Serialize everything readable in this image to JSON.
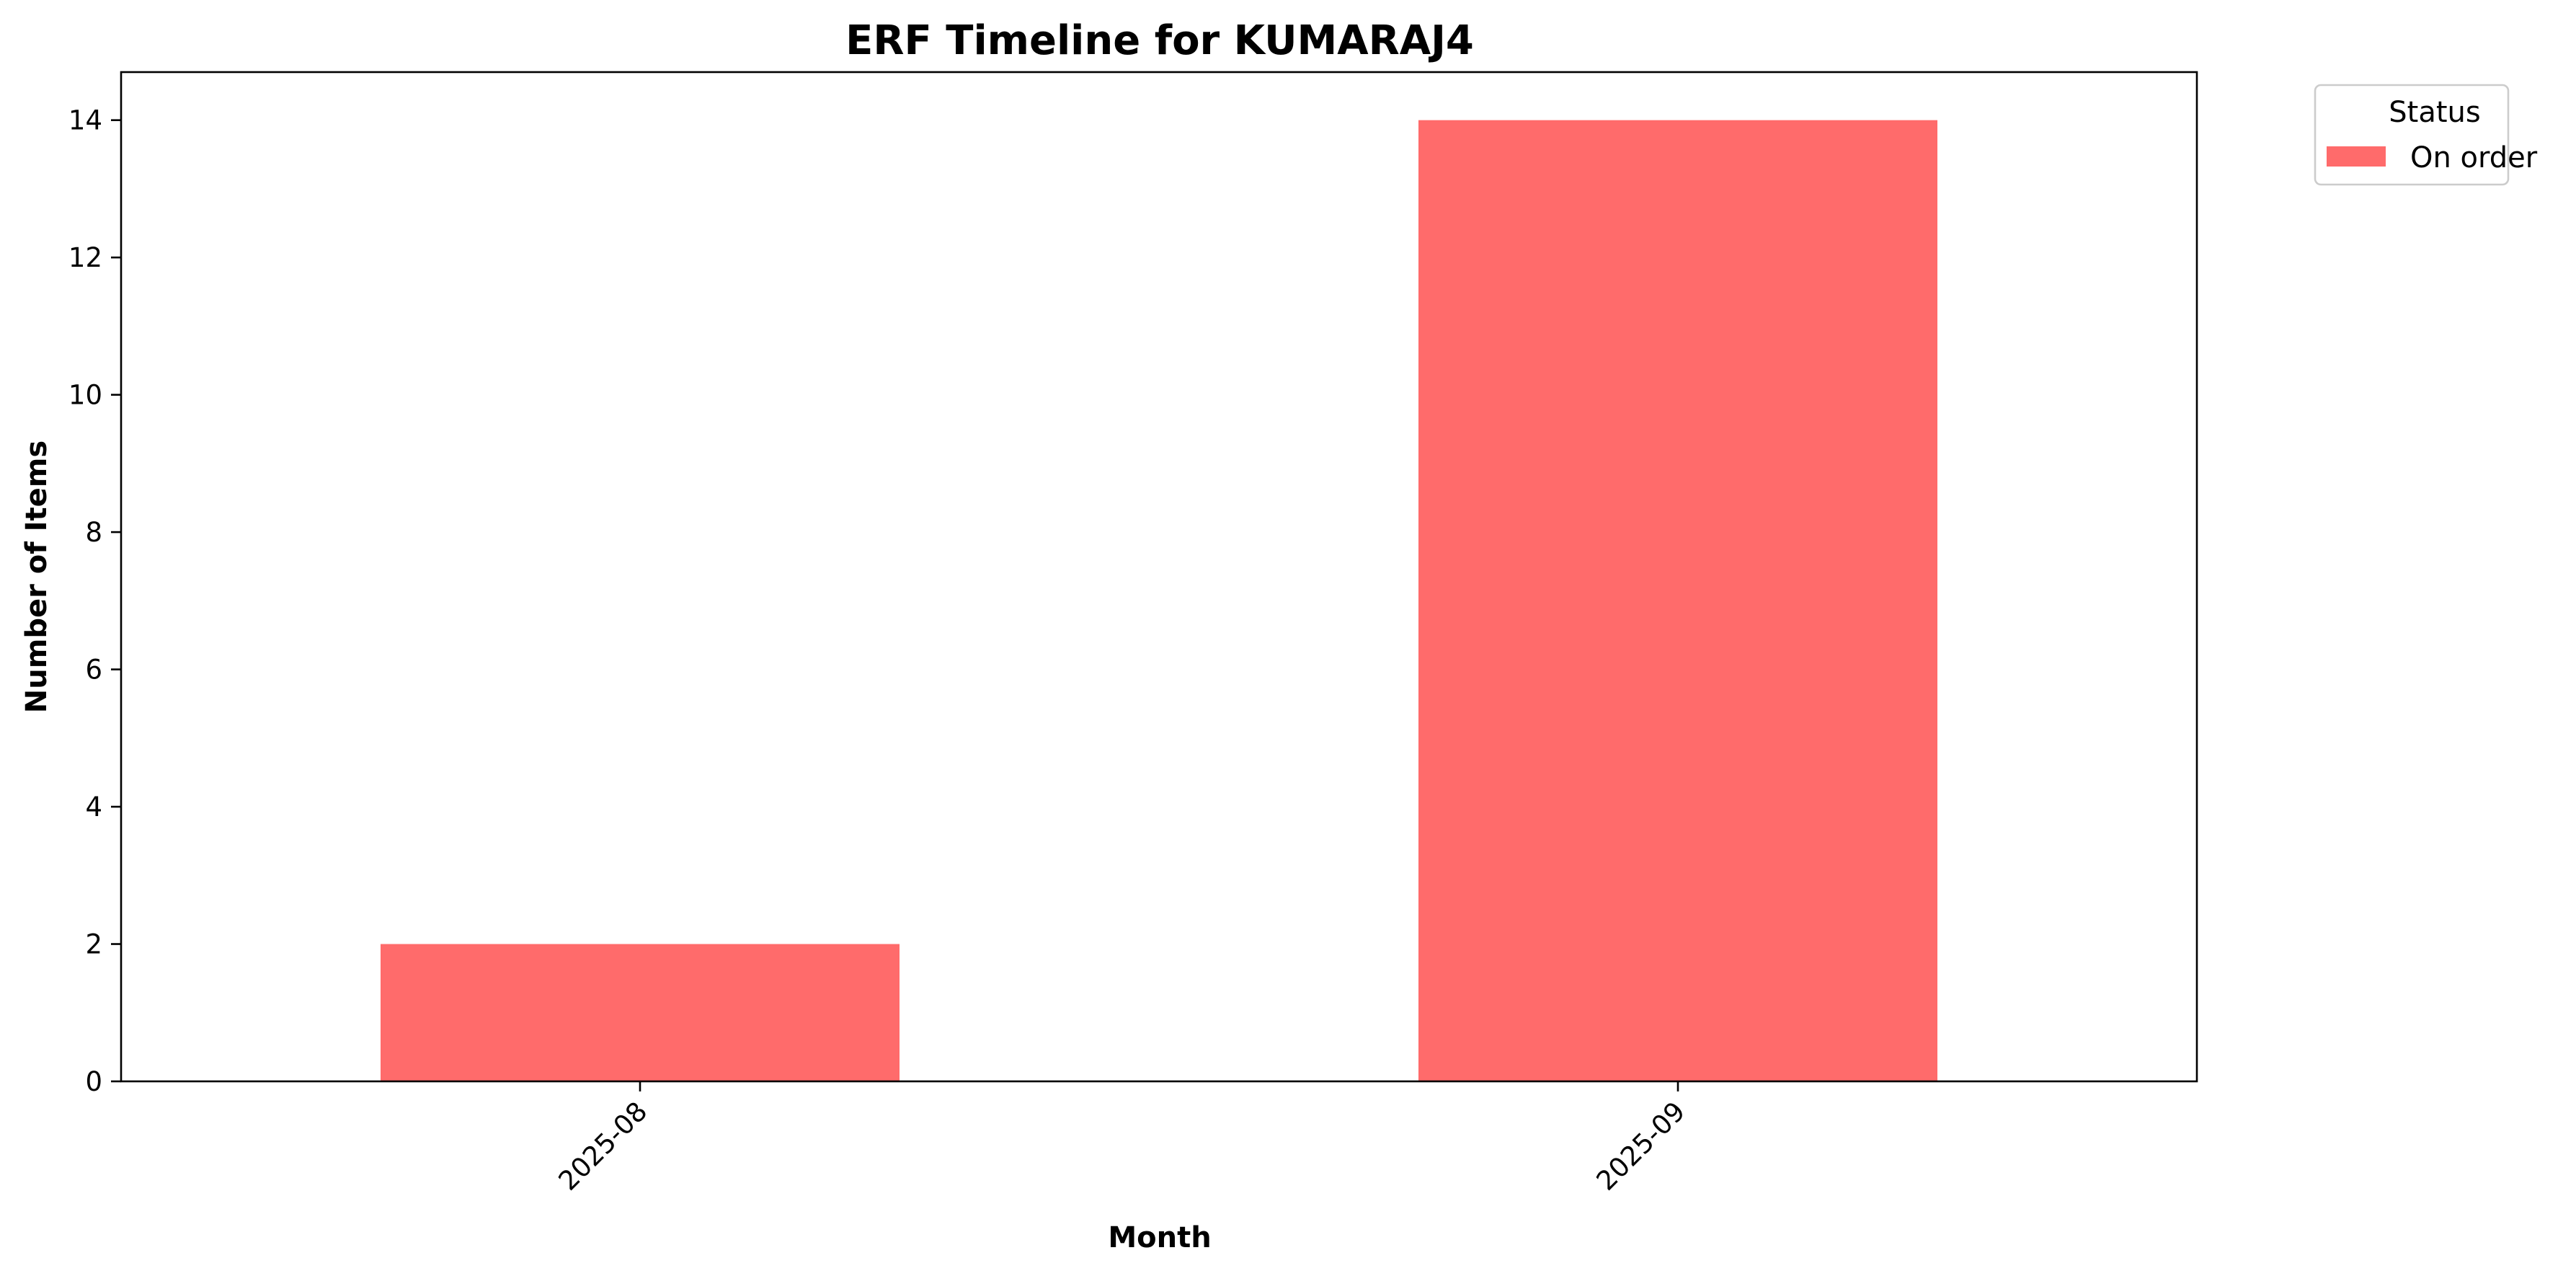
{
  "chart_data": {
    "type": "bar",
    "title": "ERF Timeline for KUMARAJ4",
    "xlabel": "Month",
    "ylabel": "Number of Items",
    "categories": [
      "2025-08",
      "2025-09"
    ],
    "series": [
      {
        "name": "On order",
        "values": [
          2,
          14
        ],
        "color": "#ff6b6b"
      }
    ],
    "ylim": [
      0,
      14.7
    ],
    "yticks": [
      0,
      2,
      4,
      6,
      8,
      10,
      12,
      14
    ],
    "grid": false,
    "legend": {
      "title": "Status",
      "placement": "outside-top-right"
    }
  }
}
